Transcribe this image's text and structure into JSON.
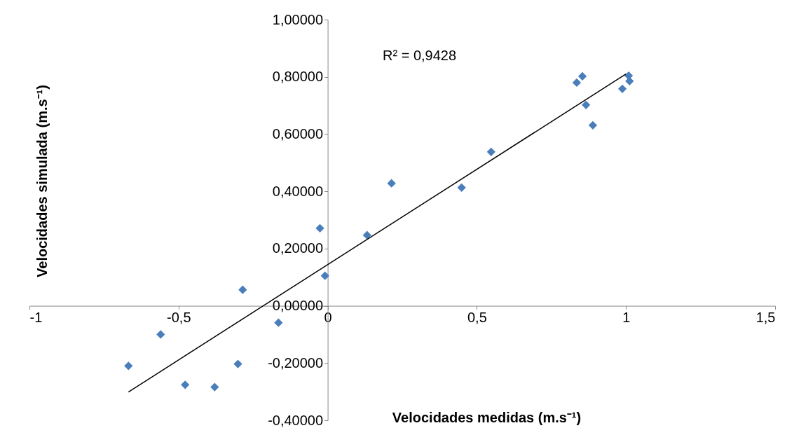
{
  "chart_data": {
    "type": "scatter",
    "xlabel": "Velocidades medidas (m.s⁻¹)",
    "ylabel": "Velocidades simulada  (m.s⁻¹)",
    "annotations": [
      "R² = 0,9428"
    ],
    "series": [
      {
        "color": "#4a7ebb",
        "marker": "diamond",
        "x": [
          -0.668,
          -0.56,
          -0.478,
          -0.379,
          -0.301,
          -0.285,
          -0.165,
          -0.026,
          -0.009,
          0.132,
          0.214,
          0.449,
          0.548,
          0.835,
          0.854,
          0.866,
          0.889,
          0.988,
          1.009,
          1.012
        ],
        "values": [
          -0.21,
          -0.1,
          -0.276,
          -0.284,
          -0.203,
          0.056,
          -0.059,
          0.271,
          0.105,
          0.247,
          0.428,
          0.413,
          0.538,
          0.78,
          0.802,
          0.702,
          0.631,
          0.758,
          0.804,
          0.785
        ]
      },
      {
        "type": "line",
        "color": "#000000",
        "x": [
          -0.668,
          1.0
        ],
        "values": [
          -0.301,
          0.81
        ]
      }
    ],
    "xlim": [
      -1,
      1.5
    ],
    "xticks": [
      -1,
      {
        "value": -0.5,
        "label": "-0,5"
      },
      0,
      {
        "value": 0.5,
        "label": "0,5"
      },
      1,
      {
        "value": 1.5,
        "label": "1,5"
      }
    ],
    "ylim": [
      -0.4,
      1.0
    ],
    "yticks": [
      {
        "value": -0.4,
        "label": "-0,40000"
      },
      {
        "value": -0.2,
        "label": "-0,20000"
      },
      {
        "value": 0,
        "label": "0,00000"
      },
      {
        "value": 0.2,
        "label": "0,20000"
      },
      {
        "value": 0.4,
        "label": "0,40000"
      },
      {
        "value": 0.6,
        "label": "0,60000"
      },
      {
        "value": 0.8,
        "label": "0,80000"
      },
      {
        "value": 1.0,
        "label": "1,00000"
      }
    ],
    "grid": false
  }
}
